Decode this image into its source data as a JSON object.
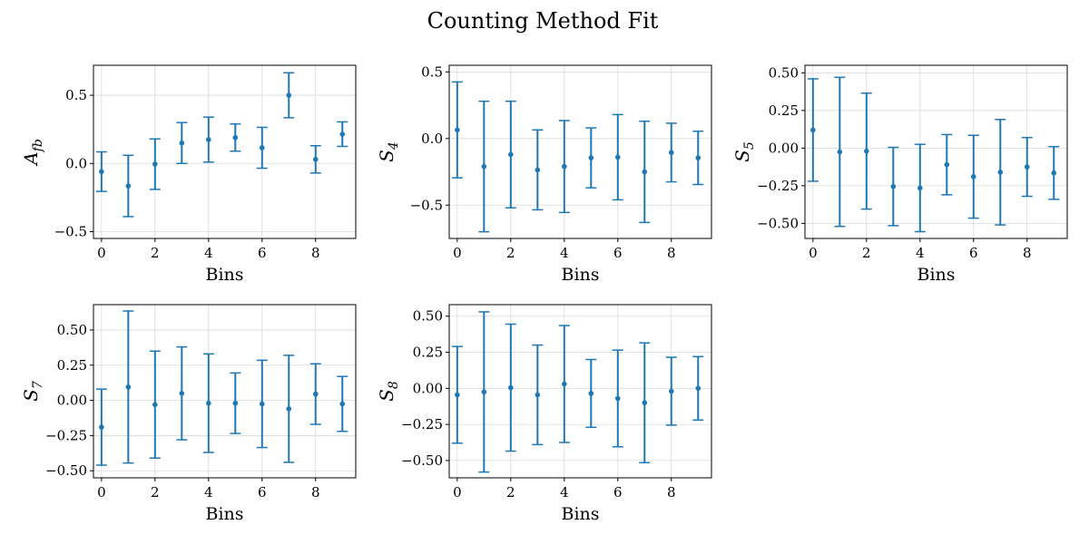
{
  "figure": {
    "title": "Counting Method Fit"
  },
  "colors": {
    "series": "#1f77b4",
    "grid": "#d9d9d9"
  },
  "chart_data": [
    {
      "type": "scatter",
      "title": "",
      "xlabel": "Bins",
      "ylabel": {
        "main": "A",
        "sub": "fb"
      },
      "x": [
        0,
        1,
        2,
        3,
        4,
        5,
        6,
        7,
        8,
        9
      ],
      "y": [
        -0.06,
        -0.165,
        -0.005,
        0.15,
        0.175,
        0.19,
        0.115,
        0.5,
        0.03,
        0.215
      ],
      "yerr": [
        0.145,
        0.225,
        0.185,
        0.15,
        0.165,
        0.1,
        0.15,
        0.165,
        0.1,
        0.09
      ],
      "xlim": [
        -0.3,
        9.5
      ],
      "ylim": [
        -0.55,
        0.72
      ],
      "xticks": [
        0,
        2,
        4,
        6,
        8
      ],
      "yticks": [
        -0.5,
        0.0,
        0.5
      ],
      "ytick_labels": [
        "−0.5",
        "0.0",
        "0.5"
      ],
      "grid": true
    },
    {
      "type": "scatter",
      "title": "",
      "xlabel": "Bins",
      "ylabel": {
        "main": "S",
        "sub": "4"
      },
      "x": [
        0,
        1,
        2,
        3,
        4,
        5,
        6,
        7,
        8,
        9
      ],
      "y": [
        0.065,
        -0.21,
        -0.12,
        -0.235,
        -0.21,
        -0.145,
        -0.14,
        -0.25,
        -0.105,
        -0.145
      ],
      "yerr": [
        0.36,
        0.49,
        0.4,
        0.3,
        0.345,
        0.225,
        0.32,
        0.38,
        0.22,
        0.2
      ],
      "xlim": [
        -0.3,
        9.5
      ],
      "ylim": [
        -0.75,
        0.55
      ],
      "xticks": [
        0,
        2,
        4,
        6,
        8
      ],
      "yticks": [
        -0.5,
        0.0,
        0.5
      ],
      "ytick_labels": [
        "−0.5",
        "0.0",
        "0.5"
      ],
      "grid": true
    },
    {
      "type": "scatter",
      "title": "",
      "xlabel": "Bins",
      "ylabel": {
        "main": "S",
        "sub": "5"
      },
      "x": [
        0,
        1,
        2,
        3,
        4,
        5,
        6,
        7,
        8,
        9
      ],
      "y": [
        0.12,
        -0.025,
        -0.02,
        -0.255,
        -0.265,
        -0.11,
        -0.19,
        -0.16,
        -0.125,
        -0.165
      ],
      "yerr": [
        0.34,
        0.495,
        0.385,
        0.26,
        0.29,
        0.2,
        0.275,
        0.35,
        0.195,
        0.175
      ],
      "xlim": [
        -0.3,
        9.5
      ],
      "ylim": [
        -0.6,
        0.55
      ],
      "xticks": [
        0,
        2,
        4,
        6,
        8
      ],
      "yticks": [
        -0.5,
        -0.25,
        0.0,
        0.25,
        0.5
      ],
      "ytick_labels": [
        "−0.50",
        "−0.25",
        "0.00",
        "0.25",
        "0.50"
      ],
      "grid": true
    },
    {
      "type": "scatter",
      "title": "",
      "xlabel": "Bins",
      "ylabel": {
        "main": "S",
        "sub": "7"
      },
      "x": [
        0,
        1,
        2,
        3,
        4,
        5,
        6,
        7,
        8,
        9
      ],
      "y": [
        -0.19,
        0.095,
        -0.03,
        0.05,
        -0.02,
        -0.02,
        -0.025,
        -0.06,
        0.045,
        -0.025
      ],
      "yerr": [
        0.27,
        0.54,
        0.38,
        0.33,
        0.35,
        0.215,
        0.31,
        0.38,
        0.215,
        0.195
      ],
      "xlim": [
        -0.3,
        9.5
      ],
      "ylim": [
        -0.55,
        0.68
      ],
      "xticks": [
        0,
        2,
        4,
        6,
        8
      ],
      "yticks": [
        -0.5,
        -0.25,
        0.0,
        0.25,
        0.5
      ],
      "ytick_labels": [
        "−0.50",
        "−0.25",
        "0.00",
        "0.25",
        "0.50"
      ],
      "grid": true
    },
    {
      "type": "scatter",
      "title": "",
      "xlabel": "Bins",
      "ylabel": {
        "main": "S",
        "sub": "8"
      },
      "x": [
        0,
        1,
        2,
        3,
        4,
        5,
        6,
        7,
        8,
        9
      ],
      "y": [
        -0.045,
        -0.025,
        0.005,
        -0.045,
        0.03,
        -0.035,
        -0.07,
        -0.1,
        -0.02,
        0.0
      ],
      "yerr": [
        0.335,
        0.555,
        0.44,
        0.345,
        0.405,
        0.235,
        0.335,
        0.415,
        0.235,
        0.22
      ],
      "xlim": [
        -0.3,
        9.5
      ],
      "ylim": [
        -0.62,
        0.58
      ],
      "xticks": [
        0,
        2,
        4,
        6,
        8
      ],
      "yticks": [
        -0.5,
        -0.25,
        0.0,
        0.25,
        0.5
      ],
      "ytick_labels": [
        "−0.50",
        "−0.25",
        "0.00",
        "0.25",
        "0.50"
      ],
      "grid": true
    }
  ]
}
